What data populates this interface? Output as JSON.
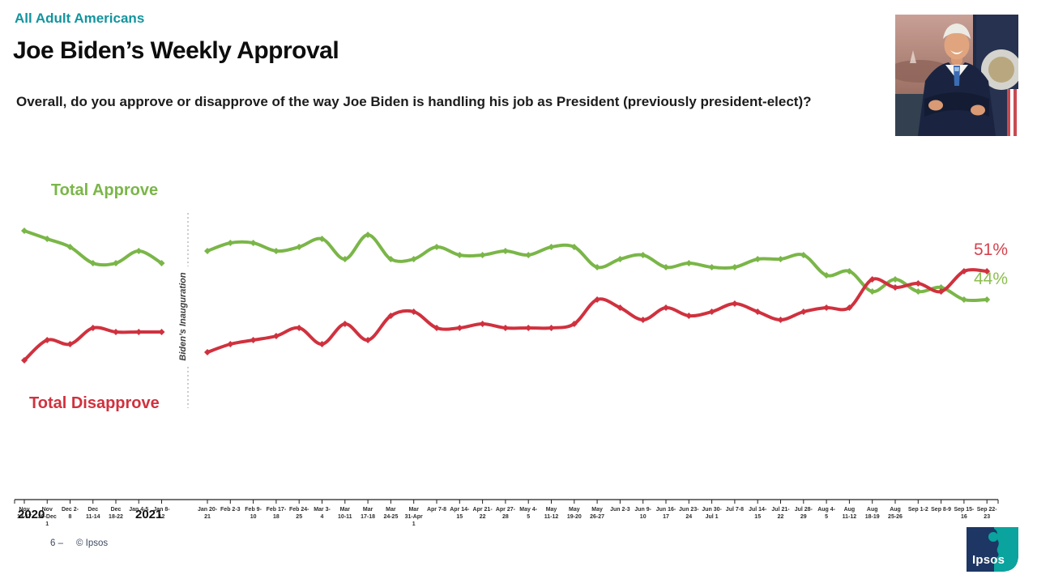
{
  "header": {
    "audience": "All Adult Americans",
    "title": "Joe Biden’s Weekly Approval",
    "question": "Overall, do you approve or disapprove of the way Joe Biden is handling his job as President (previously president-elect)?"
  },
  "colors": {
    "accent_teal": "#13949E",
    "approve_green": "#7AB648",
    "disapprove_red": "#D0313E",
    "footer_navy": "#3c4a63"
  },
  "chart_data": {
    "type": "line",
    "legend": {
      "approve": "Total Approve",
      "disapprove": "Total Disapprove"
    },
    "annotation": "Biden’s Inauguration",
    "year_labels": {
      "left": "2020",
      "right": "2021"
    },
    "end_labels": {
      "disapprove": "51%",
      "approve": "44%"
    },
    "ylim": [
      25,
      65
    ],
    "grid": false,
    "categories_pre": [
      [
        "Nov",
        "13-17"
      ],
      [
        "Nov",
        "30-Dec",
        "1"
      ],
      [
        "Dec 2-",
        "8"
      ],
      [
        "Dec",
        "11-14"
      ],
      [
        "Dec",
        "18-22"
      ],
      [
        "Jan 4-5"
      ],
      [
        "Jan 8-",
        "12"
      ]
    ],
    "categories_post": [
      [
        "Jan 20-",
        "21"
      ],
      [
        "Feb 2-3"
      ],
      [
        "Feb 9-",
        "10"
      ],
      [
        "Feb 17-",
        "18"
      ],
      [
        "Feb 24-",
        "25"
      ],
      [
        "Mar 3-",
        "4"
      ],
      [
        "Mar",
        "10-11"
      ],
      [
        "Mar",
        "17-18"
      ],
      [
        "Mar",
        "24-25"
      ],
      [
        "Mar",
        "31-Apr",
        "1"
      ],
      [
        "Apr 7-8"
      ],
      [
        "Apr 14-",
        "15"
      ],
      [
        "Apr 21-",
        "22"
      ],
      [
        "Apr 27-",
        "28"
      ],
      [
        "May 4-",
        "5"
      ],
      [
        "May",
        "11-12"
      ],
      [
        "May",
        "19-20"
      ],
      [
        "May",
        "26-27"
      ],
      [
        "Jun 2-3"
      ],
      [
        "Jun 9-",
        "10"
      ],
      [
        "Jun 16-",
        "17"
      ],
      [
        "Jun 23-",
        "24"
      ],
      [
        "Jun 30-",
        "Jul 1"
      ],
      [
        "Jul 7-8"
      ],
      [
        "Jul 14-",
        "15"
      ],
      [
        "Jul 21-",
        "22"
      ],
      [
        "Jul 28-",
        "29"
      ],
      [
        "Aug 4-",
        "5"
      ],
      [
        "Aug",
        "11-12"
      ],
      [
        "Aug",
        "18-19"
      ],
      [
        "Aug",
        "25-26"
      ],
      [
        "Sep 1-2"
      ],
      [
        "Sep 8-9"
      ],
      [
        "Sep 15-",
        "16"
      ],
      [
        "Sep 22-",
        "23"
      ]
    ],
    "series": [
      {
        "name": "Total Approve",
        "color": "#7AB648",
        "pre": [
          61,
          59,
          57,
          53,
          53,
          56,
          53
        ],
        "post": [
          56,
          58,
          58,
          56,
          57,
          59,
          54,
          60,
          54,
          54,
          57,
          55,
          55,
          56,
          55,
          57,
          57,
          52,
          54,
          55,
          52,
          53,
          52,
          52,
          54,
          54,
          55,
          50,
          51,
          46,
          49,
          46,
          47,
          44,
          44
        ]
      },
      {
        "name": "Total Disapprove",
        "color": "#D0313E",
        "pre": [
          29,
          34,
          33,
          37,
          36,
          36,
          36
        ],
        "post": [
          31,
          33,
          34,
          35,
          37,
          33,
          38,
          34,
          40,
          41,
          37,
          37,
          38,
          37,
          37,
          37,
          38,
          44,
          42,
          39,
          42,
          40,
          41,
          43,
          41,
          39,
          41,
          42,
          42,
          49,
          47,
          48,
          46,
          51,
          51
        ]
      }
    ]
  },
  "footer": {
    "page_number": "6 –",
    "copyright": "© Ipsos",
    "logo_text": "Ipsos"
  }
}
